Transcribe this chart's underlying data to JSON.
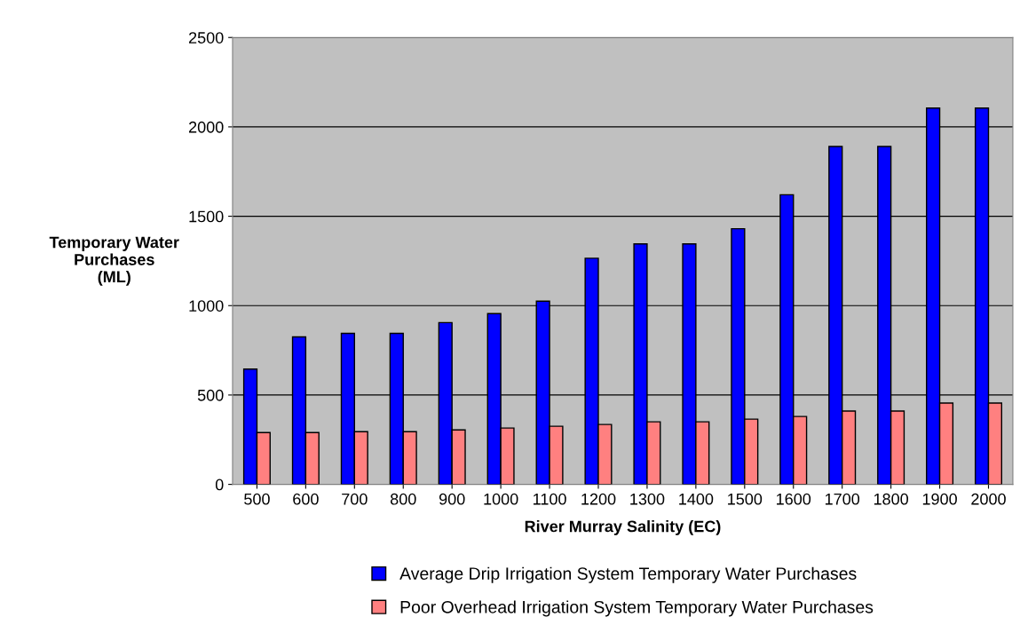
{
  "chart_data": {
    "type": "bar",
    "xlabel": "River Murray Salinity (EC)",
    "ylabel": "Temporary Water\nPurchases\n(ML)",
    "categories": [
      "500",
      "600",
      "700",
      "800",
      "900",
      "1000",
      "1100",
      "1200",
      "1300",
      "1400",
      "1500",
      "1600",
      "1700",
      "1800",
      "1900",
      "2000"
    ],
    "series": [
      {
        "name": "Average Drip Irrigation System Temporary Water Purchases",
        "color": "#0000ff",
        "values": [
          645,
          825,
          845,
          845,
          905,
          955,
          1025,
          1265,
          1345,
          1345,
          1430,
          1620,
          1890,
          1890,
          2105,
          2105
        ]
      },
      {
        "name": "Poor Overhead Irrigation System Temporary Water Purchases",
        "color": "#ff8080",
        "values": [
          290,
          290,
          295,
          295,
          305,
          315,
          325,
          335,
          350,
          350,
          365,
          380,
          410,
          410,
          455,
          455
        ]
      }
    ],
    "ylim": [
      0,
      2500
    ],
    "yticks": [
      0,
      500,
      1000,
      1500,
      2000,
      2500
    ],
    "grid": "y",
    "legend": "bottom"
  }
}
